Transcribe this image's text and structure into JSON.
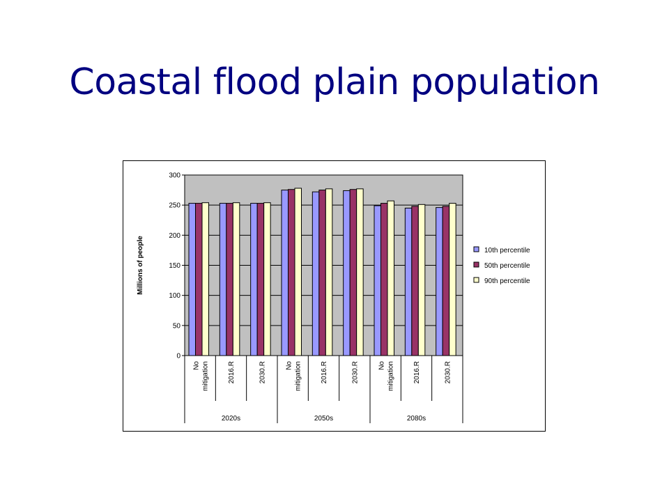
{
  "slide": {
    "title": "Coastal flood plain population"
  },
  "colors": {
    "title": "#000080",
    "plot_bg": "#c0c0c0",
    "series": [
      "#9999ff",
      "#993366",
      "#ffffcc"
    ]
  },
  "chart_data": {
    "type": "bar",
    "ylabel": "Millions of people",
    "ylim": [
      0,
      300
    ],
    "yticks": [
      "0",
      "50",
      "100",
      "150",
      "200",
      "250",
      "300"
    ],
    "grid": true,
    "legend_position": "right",
    "groups": [
      {
        "label": "2020s",
        "categories": [
          [
            "No",
            "mitigation"
          ],
          [
            "2016.R"
          ],
          [
            "2030.R"
          ]
        ]
      },
      {
        "label": "2050s",
        "categories": [
          [
            "No",
            "mitigation"
          ],
          [
            "2016.R"
          ],
          [
            "2030.R"
          ]
        ]
      },
      {
        "label": "2080s",
        "categories": [
          [
            "No",
            "mitigation"
          ],
          [
            "2016.R"
          ],
          [
            "2030.R"
          ]
        ]
      }
    ],
    "series": [
      {
        "name": "10th percentile",
        "values": [
          253,
          253,
          253,
          275,
          272,
          274,
          249,
          245,
          246
        ]
      },
      {
        "name": "50th percentile",
        "values": [
          253,
          253,
          253,
          276,
          275,
          276,
          253,
          248,
          248
        ]
      },
      {
        "name": "90th percentile",
        "values": [
          254,
          254,
          254,
          278,
          277,
          277,
          257,
          251,
          253
        ]
      }
    ]
  }
}
